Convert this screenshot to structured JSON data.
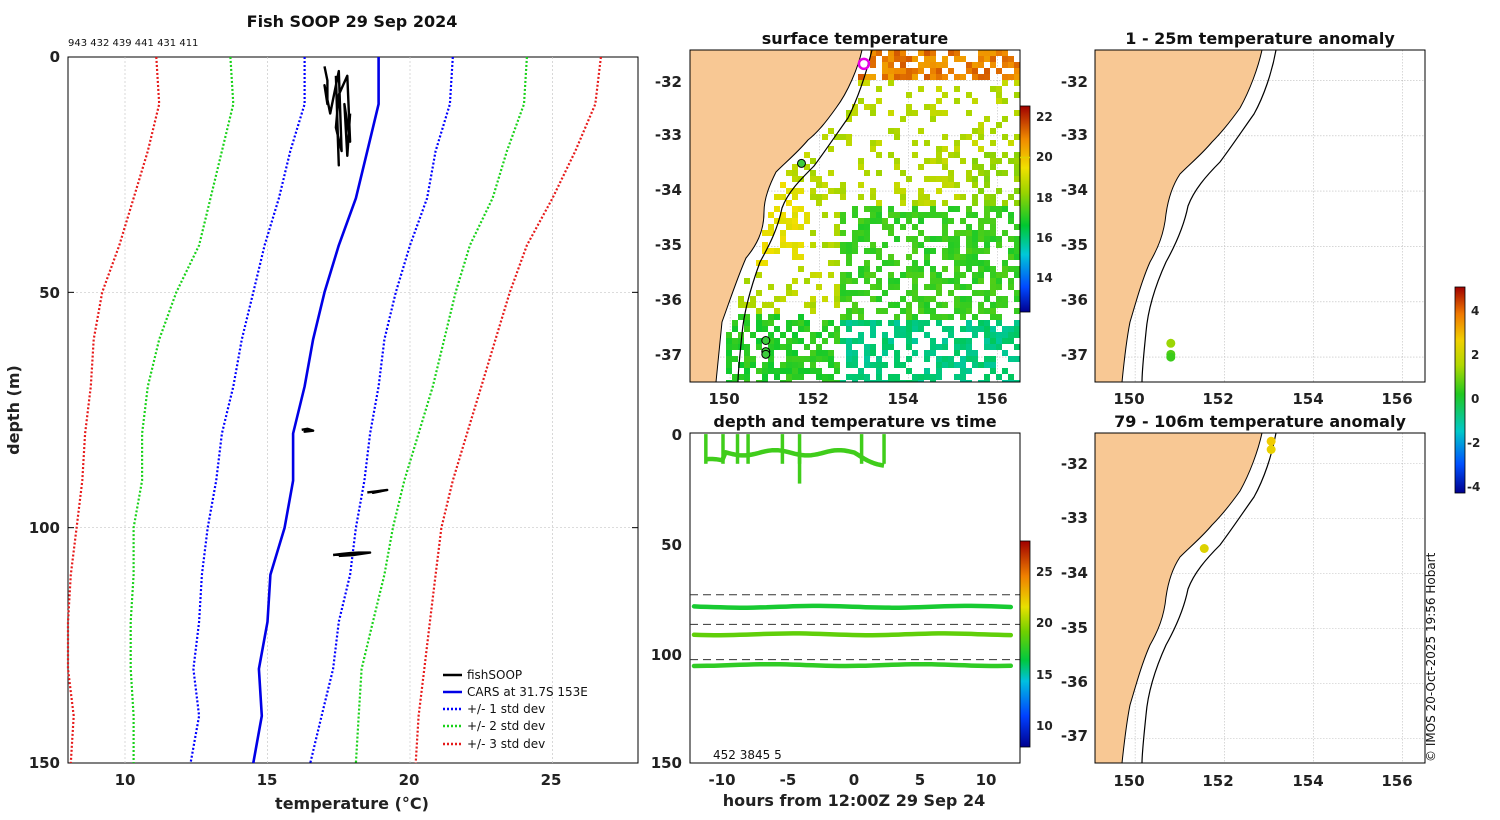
{
  "colors": {
    "land": "#f8c894",
    "cars": "#0000e6",
    "std1": "#0000ff",
    "std2": "#19d119",
    "std3": "#e61a1a",
    "fish": "#000000",
    "cursor": "#e0d000",
    "marker": "#e600e6"
  },
  "chart_data": [
    {
      "id": "profile",
      "type": "line",
      "title": "Fish SOOP 29 Sep 2024",
      "subtitle": "943 432 439 441 431 411",
      "xlabel": "temperature (°C)",
      "ylabel": "depth (m)",
      "xlim": [
        8,
        28
      ],
      "ylim": [
        150,
        0
      ],
      "xticks": [
        "10",
        "15",
        "20",
        "25"
      ],
      "yticks": [
        "0",
        "50",
        "100",
        "150"
      ],
      "legend_position": "bottom-right",
      "legend": [
        "fishSOOP",
        "CARS at 31.7S 153E",
        "+/- 1 std dev",
        "+/- 2 std dev",
        "+/- 3 std dev"
      ],
      "depth": [
        0,
        10,
        20,
        30,
        40,
        50,
        60,
        70,
        80,
        90,
        100,
        110,
        120,
        130,
        140,
        150
      ],
      "series": [
        {
          "name": "CARS mean",
          "values": [
            18.9,
            18.9,
            18.5,
            18.1,
            17.5,
            17.0,
            16.6,
            16.3,
            15.9,
            15.9,
            15.6,
            15.1,
            15.0,
            14.7,
            14.8,
            14.5
          ]
        },
        {
          "name": "+1 std",
          "values": [
            21.5,
            21.4,
            20.9,
            20.6,
            20.0,
            19.5,
            19.1,
            18.9,
            18.6,
            18.4,
            18.1,
            17.9,
            17.5,
            17.3,
            16.9,
            16.5
          ]
        },
        {
          "name": "-1 std",
          "values": [
            16.3,
            16.3,
            15.8,
            15.4,
            14.9,
            14.5,
            14.1,
            13.8,
            13.4,
            13.2,
            12.9,
            12.7,
            12.6,
            12.4,
            12.6,
            12.3
          ]
        },
        {
          "name": "+2 std",
          "values": [
            24.1,
            24.0,
            23.4,
            22.9,
            22.1,
            21.6,
            21.2,
            20.8,
            20.3,
            19.8,
            19.4,
            19.1,
            18.7,
            18.3,
            18.2,
            18.1
          ]
        },
        {
          "name": "-2 std",
          "values": [
            13.7,
            13.8,
            13.4,
            13.0,
            12.6,
            11.8,
            11.2,
            10.8,
            10.6,
            10.6,
            10.3,
            10.3,
            10.2,
            10.2,
            10.3,
            10.3
          ]
        },
        {
          "name": "+3 std",
          "values": [
            26.7,
            26.5,
            25.8,
            25.0,
            24.1,
            23.5,
            23.0,
            22.5,
            22.0,
            21.5,
            21.1,
            20.9,
            20.7,
            20.5,
            20.3,
            20.2
          ]
        },
        {
          "name": "-3 std",
          "values": [
            11.1,
            11.2,
            10.8,
            10.3,
            9.8,
            9.2,
            8.9,
            8.8,
            8.6,
            8.5,
            8.3,
            8.1,
            8.0,
            8.0,
            8.2,
            8.1
          ]
        }
      ],
      "fish_points": [
        {
          "t": [
            17.0,
            17.1,
            17.1,
            17.0,
            17.2,
            17.5,
            17.6,
            17.4,
            17.5,
            17.8,
            17.9,
            17.7,
            17.8,
            17.9
          ],
          "d": [
            2,
            5,
            10,
            6,
            12,
            3,
            20,
            15,
            8,
            4,
            18,
            10,
            21,
            12
          ]
        },
        {
          "t": [
            17.4,
            17.5,
            17.45
          ],
          "d": [
            4,
            23,
            14
          ]
        },
        {
          "t": [
            16.2,
            16.4,
            16.6,
            16.3,
            16.5
          ],
          "d": [
            79.2,
            79.0,
            79.4,
            79.6,
            79.1
          ]
        },
        {
          "t": [
            18.5,
            18.8,
            19.2,
            18.7,
            19.0
          ],
          "d": [
            92.5,
            92.3,
            92.0,
            92.6,
            92.1
          ]
        },
        {
          "t": [
            17.3,
            17.6,
            17.9,
            18.2,
            18.6,
            18.0,
            17.5
          ],
          "d": [
            105.8,
            105.6,
            105.4,
            105.3,
            105.3,
            105.8,
            106.0
          ]
        }
      ]
    },
    {
      "id": "sst",
      "type": "heatmap",
      "title": "surface temperature",
      "xlim": [
        149.1,
        156.5
      ],
      "ylim": [
        -37.45,
        -31.45
      ],
      "xticks": [
        "150",
        "152",
        "154",
        "156"
      ],
      "yticks": [
        "-32",
        "-33",
        "-34",
        "-35",
        "-36",
        "-37"
      ],
      "colorbar": {
        "range": [
          12.5,
          22.5
        ],
        "ticks": [
          "14",
          "16",
          "18",
          "20",
          "22"
        ]
      },
      "cursor_value": 20,
      "markers": [
        {
          "lon": 151.6,
          "lat": -33.5
        },
        {
          "lon": 150.8,
          "lat": -36.7
        },
        {
          "lon": 150.8,
          "lat": -36.9
        },
        {
          "lon": 150.8,
          "lat": -36.95
        }
      ],
      "ship": {
        "lon": 153.0,
        "lat": -31.7
      }
    },
    {
      "id": "anom_shallow",
      "type": "scatter",
      "title": "1 - 25m temperature anomaly",
      "xlim": [
        149.1,
        156.5
      ],
      "ylim": [
        -37.45,
        -31.45
      ],
      "xticks": [
        "150",
        "152",
        "154",
        "156"
      ],
      "yticks": [
        "-32",
        "-33",
        "-34",
        "-35",
        "-36",
        "-37"
      ],
      "points": [
        {
          "lon": 150.8,
          "lat": -36.75,
          "anomaly": 1.2
        },
        {
          "lon": 150.8,
          "lat": -36.95,
          "anomaly": 0.5
        },
        {
          "lon": 150.8,
          "lat": -37.0,
          "anomaly": 0.3
        }
      ]
    },
    {
      "id": "anom_deep",
      "type": "scatter",
      "title": "79 - 106m temperature anomaly",
      "xlim": [
        149.1,
        156.5
      ],
      "ylim": [
        -37.45,
        -31.45
      ],
      "xticks": [
        "150",
        "152",
        "154",
        "156"
      ],
      "yticks": [
        "-32",
        "-33",
        "-34",
        "-35",
        "-36",
        "-37"
      ],
      "colorbar": {
        "range": [
          -4.5,
          5
        ],
        "ticks": [
          "4",
          "2",
          "0",
          "-2",
          "-4"
        ]
      },
      "points": [
        {
          "lon": 153.05,
          "lat": -31.6,
          "anomaly": 2.6
        },
        {
          "lon": 153.05,
          "lat": -31.75,
          "anomaly": 2.4
        },
        {
          "lon": 151.55,
          "lat": -33.55,
          "anomaly": 2.2
        }
      ]
    },
    {
      "id": "depth_time",
      "type": "scatter",
      "title": "depth and temperature vs time",
      "xlabel": "hours from 12:00Z 29 Sep 24",
      "xlim": [
        -12.5,
        12.5
      ],
      "ylim": [
        150,
        0
      ],
      "xticks": [
        "-10",
        "-5",
        "0",
        "5",
        "10"
      ],
      "yticks": [
        "0",
        "50",
        "100",
        "150"
      ],
      "colorbar": {
        "range": [
          8,
          28
        ],
        "ticks": [
          "25",
          "20",
          "15",
          "10"
        ]
      },
      "dashed_depths": [
        73.5,
        87,
        103
      ],
      "annotation": "452 3845 5",
      "bands": [
        {
          "depth": 79,
          "temp": 17.0
        },
        {
          "depth": 91.5,
          "temp": 18.8
        },
        {
          "depth": 105.5,
          "temp": 17.6
        }
      ],
      "surface": {
        "x0": -11.3,
        "x1": 2.2,
        "top": 0.5,
        "bottom": 17,
        "temp": 18.0
      }
    }
  ],
  "footer": {
    "credit": "© IMOS 20-Oct-2025 19:56 Hobart"
  }
}
